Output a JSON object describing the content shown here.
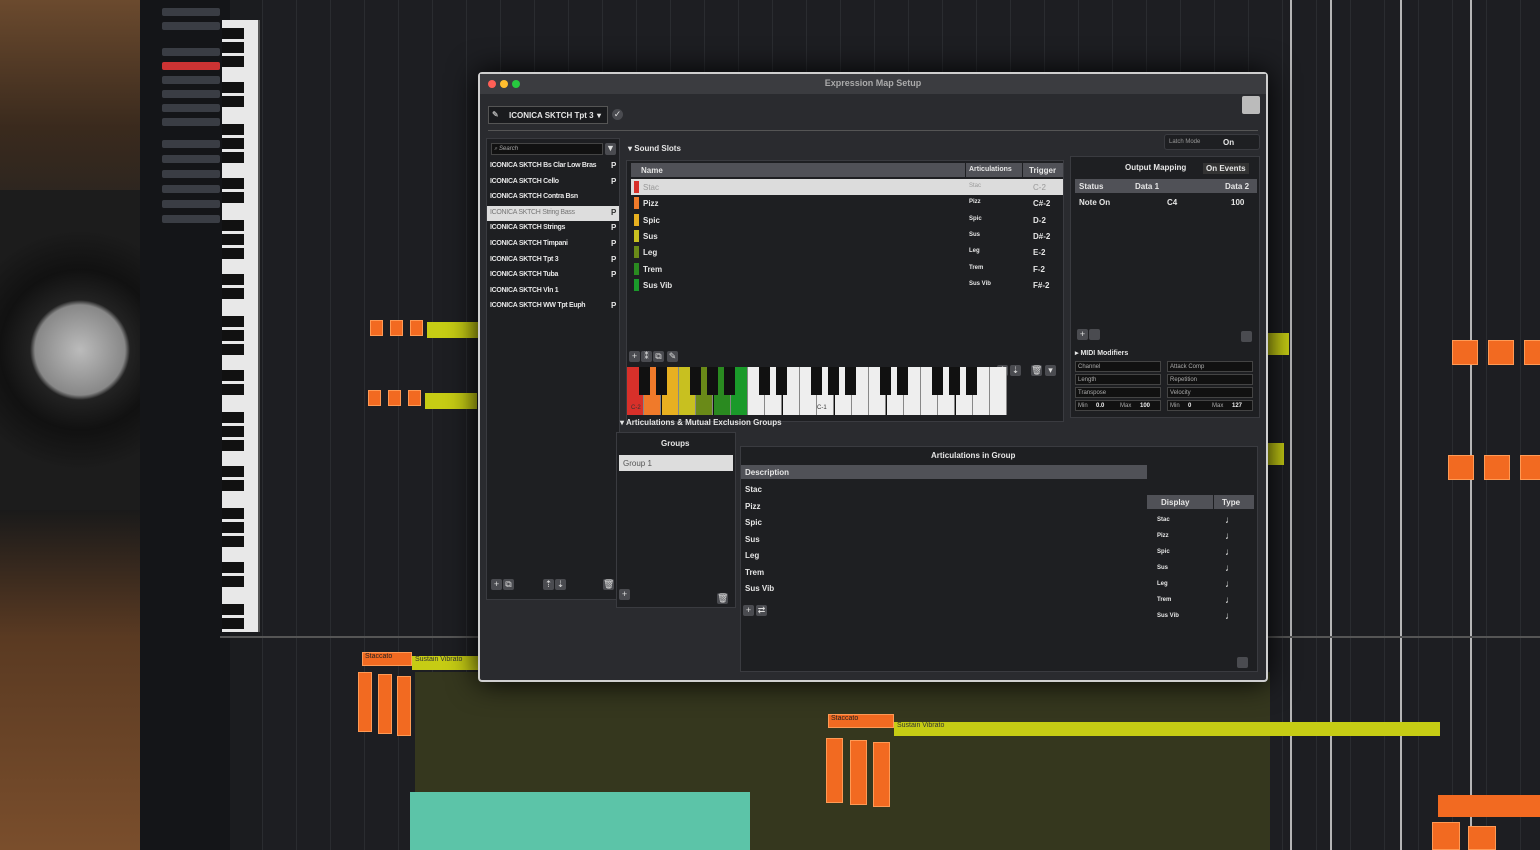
{
  "window": {
    "title": "Expression Map Setup"
  },
  "toolbar": {
    "selected_map": "ICONICA SKTCH Tpt 3"
  },
  "map_list": {
    "search_placeholder": "Search",
    "items": [
      {
        "name": "ICONICA SKTCH Bs Clar Low Bras",
        "flag": "P"
      },
      {
        "name": "ICONICA SKTCH Cello",
        "flag": "P"
      },
      {
        "name": "ICONICA SKTCH Contra Bsn",
        "flag": ""
      },
      {
        "name": "ICONICA SKTCH String Bass",
        "flag": "P",
        "selected": true
      },
      {
        "name": "ICONICA SKTCH Strings",
        "flag": "P"
      },
      {
        "name": "ICONICA SKTCH Timpani",
        "flag": "P"
      },
      {
        "name": "ICONICA SKTCH Tpt 3",
        "flag": "P"
      },
      {
        "name": "ICONICA SKTCH Tuba",
        "flag": "P"
      },
      {
        "name": "ICONICA SKTCH Vln 1",
        "flag": ""
      },
      {
        "name": "ICONICA SKTCH WW Tpt Euph",
        "flag": "P"
      }
    ]
  },
  "sound_slots": {
    "title": "Sound Slots",
    "columns": [
      "Name",
      "Articulations",
      "Trigger"
    ],
    "rows": [
      {
        "name": "Stac",
        "articulation": "Stac",
        "trigger": "C-2",
        "color": "#d8302a",
        "selected": true
      },
      {
        "name": "Pizz",
        "articulation": "Pizz",
        "trigger": "C#-2",
        "color": "#f07a2a"
      },
      {
        "name": "Spic",
        "articulation": "Spic",
        "trigger": "D-2",
        "color": "#e8b020"
      },
      {
        "name": "Sus",
        "articulation": "Sus",
        "trigger": "D#-2",
        "color": "#c8c020"
      },
      {
        "name": "Leg",
        "articulation": "Leg",
        "trigger": "E-2",
        "color": "#6a8a18"
      },
      {
        "name": "Trem",
        "articulation": "Trem",
        "trigger": "F-2",
        "color": "#2a8a20"
      },
      {
        "name": "Sus Vib",
        "articulation": "Sus Vib",
        "trigger": "F#-2",
        "color": "#1a9a2a"
      }
    ],
    "keyboard_labels": [
      "C-2",
      "C-1"
    ]
  },
  "right_panel": {
    "latch_mode_label": "Latch Mode",
    "latch_mode_value": "On",
    "output_mapping": "Output Mapping",
    "on_events": "On Events",
    "columns": [
      "Status",
      "Data 1",
      "Data 2"
    ],
    "rows": [
      {
        "status": "Note On",
        "data1": "C4",
        "data2": "100"
      }
    ],
    "midi_modifiers_title": "MIDI Modifiers",
    "modifiers_left": [
      "Channel",
      "Length",
      "Transpose"
    ],
    "modifiers_right": [
      "Attack Comp",
      "Repetition",
      "Velocity"
    ],
    "min_label": "Min",
    "max_label": "Max",
    "left_min": "0.0",
    "left_max": "100",
    "right_min": "0",
    "right_max": "127"
  },
  "articulations": {
    "title": "Articulations & Mutual Exclusion Groups",
    "groups_title": "Groups",
    "groups": [
      "Group 1"
    ],
    "in_group_title": "Articulations in Group",
    "columns": [
      "Description",
      "Display",
      "Type"
    ],
    "rows": [
      {
        "d": "Stac",
        "disp": "Stac"
      },
      {
        "d": "Pizz",
        "disp": "Pizz"
      },
      {
        "d": "Spic",
        "disp": "Spic"
      },
      {
        "d": "Sus",
        "disp": "Sus"
      },
      {
        "d": "Leg",
        "disp": "Leg"
      },
      {
        "d": "Trem",
        "disp": "Trem"
      },
      {
        "d": "Sus Vib",
        "disp": "Sus Vib"
      }
    ]
  },
  "lanes": {
    "labels": [
      "Staccato",
      "Sustain Vibrato",
      "Staccato",
      "Sustain Vibrato"
    ]
  },
  "colors": {
    "orange": "#f26a21",
    "yellow": "#c6cc14",
    "background": "#1d1e22"
  }
}
